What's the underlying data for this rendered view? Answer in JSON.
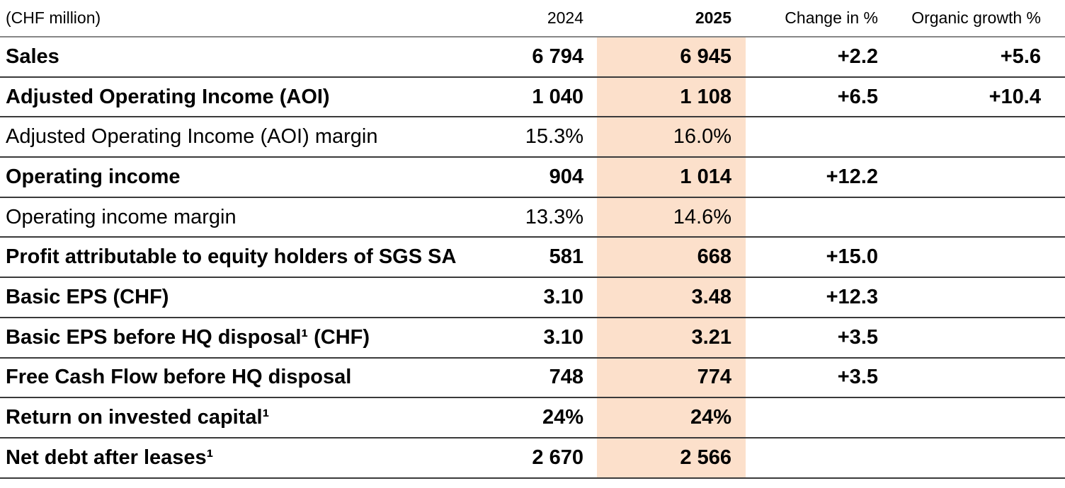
{
  "table": {
    "unit_label": "(CHF million)",
    "columns": [
      "2024",
      "2025",
      "Change in %",
      "Organic growth %"
    ],
    "rows": [
      {
        "label": "Sales",
        "bold": true,
        "y2024": "6 794",
        "y2025": "6 945",
        "change": "+2.2",
        "organic": "+5.6"
      },
      {
        "label": "Adjusted Operating Income (AOI)",
        "bold": true,
        "y2024": "1 040",
        "y2025": "1 108",
        "change": "+6.5",
        "organic": "+10.4"
      },
      {
        "label": "Adjusted Operating Income (AOI) margin",
        "bold": false,
        "y2024": "15.3%",
        "y2025": "16.0%",
        "change": "",
        "organic": ""
      },
      {
        "label": "Operating income",
        "bold": true,
        "y2024": "904",
        "y2025": "1 014",
        "change": "+12.2",
        "organic": ""
      },
      {
        "label": "Operating income margin",
        "bold": false,
        "y2024": "13.3%",
        "y2025": "14.6%",
        "change": "",
        "organic": ""
      },
      {
        "label": "Profit attributable to equity holders of SGS SA",
        "bold": true,
        "y2024": "581",
        "y2025": "668",
        "change": "+15.0",
        "organic": ""
      },
      {
        "label": "Basic EPS (CHF)",
        "bold": true,
        "y2024": "3.10",
        "y2025": "3.48",
        "change": "+12.3",
        "organic": ""
      },
      {
        "label": "Basic EPS before HQ disposal¹ (CHF)",
        "bold": true,
        "y2024": "3.10",
        "y2025": "3.21",
        "change": "+3.5",
        "organic": ""
      },
      {
        "label": "Free Cash Flow before HQ disposal",
        "bold": true,
        "y2024": "748",
        "y2025": "774",
        "change": "+3.5",
        "organic": ""
      },
      {
        "label": "Return on invested capital¹",
        "bold": true,
        "y2024": "24%",
        "y2025": "24%",
        "change": "",
        "organic": ""
      },
      {
        "label": "Net debt after leases¹",
        "bold": true,
        "y2024": "2 670",
        "y2025": "2 566",
        "change": "",
        "organic": ""
      }
    ]
  },
  "colors": {
    "highlight_2025_column": "#fce0cb",
    "row_separator": "#3a3a3a",
    "header_rule": "#868686",
    "text": "#000000"
  }
}
